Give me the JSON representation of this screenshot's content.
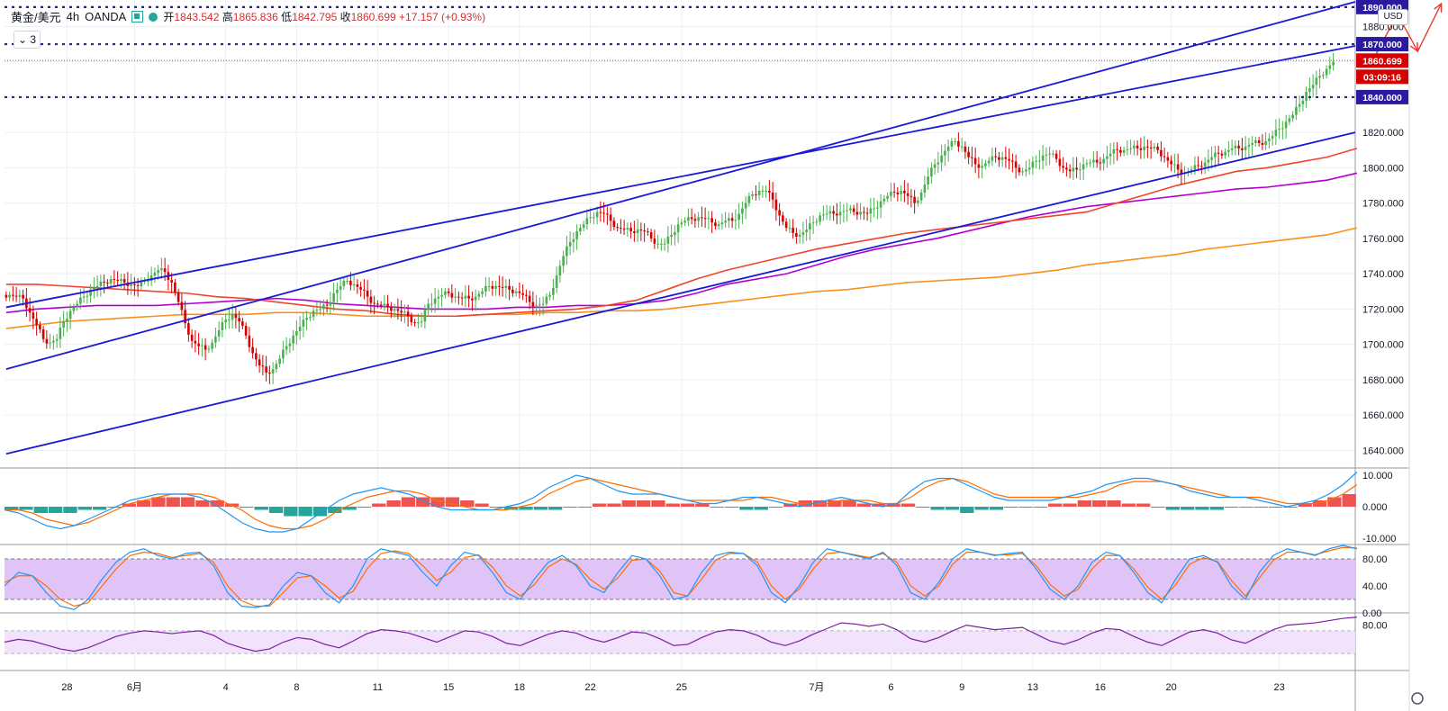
{
  "legend": {
    "symbol": "黄金/美元",
    "interval": "4h",
    "exchange": "OANDA",
    "open_label": "开",
    "open": "1843.542",
    "high_label": "高",
    "high": "1865.836",
    "low_label": "低",
    "low": "1842.795",
    "close_label": "收",
    "close": "1860.699",
    "change": "+17.157 (+0.93%)",
    "interval_selector": "3",
    "currency": "USD"
  },
  "colors": {
    "up": "#26a69a",
    "candle_up": "#4caf50",
    "candle_down": "#d50000",
    "channel": "#1a1ad6",
    "level": "#2a1aa0",
    "price_line": "#e53935",
    "ma_fast": "#f0442b",
    "ma_mid": "#b200d0",
    "ma_slow": "#f7901e",
    "macd_pos": "#ef5350",
    "macd_neg": "#26a69a",
    "macd_line": "#2196f3",
    "signal_line": "#ff6d00",
    "stoch_band": "#e1c4f7",
    "rsi_band": "#f3e2fb",
    "rsi_line": "#7b1fa2"
  },
  "chart_data": [
    {
      "type": "candlestick",
      "title": "黄金/美元 · 4h · OANDA",
      "ylim": [
        1630,
        1895
      ],
      "yticks": [
        1640,
        1660,
        1680,
        1700,
        1720,
        1740,
        1760,
        1780,
        1800,
        1820,
        1840,
        1860,
        1880
      ],
      "ytick_labels": [
        "1640.000",
        "1660.000",
        "1680.000",
        "1700.000",
        "1720.000",
        "1740.000",
        "1760.000",
        "1780.000",
        "1800.000",
        "1820.000",
        "1840.000",
        "1860.000",
        "1880.000"
      ],
      "x_ticks": [
        "28",
        "6月",
        "4",
        "8",
        "11",
        "15",
        "18",
        "22",
        "25",
        "7月",
        "6",
        "9",
        "13",
        "16",
        "20",
        "23"
      ],
      "x_tick_index": [
        18,
        38,
        65,
        86,
        110,
        131,
        152,
        173,
        200,
        240,
        262,
        283,
        304,
        324,
        345,
        377
      ],
      "n_bars": 400,
      "close_series": [
        1728,
        1727,
        1726,
        1718,
        1711,
        1703,
        1701,
        1703,
        1713,
        1719,
        1723,
        1727,
        1731,
        1733,
        1735,
        1737,
        1736,
        1735,
        1734,
        1733,
        1736,
        1739,
        1742,
        1741,
        1735,
        1724,
        1712,
        1702,
        1699,
        1697,
        1701,
        1708,
        1714,
        1717,
        1713,
        1705,
        1695,
        1688,
        1684,
        1686,
        1692,
        1699,
        1705,
        1710,
        1715,
        1719,
        1720,
        1722,
        1729,
        1733,
        1736,
        1734,
        1731,
        1727,
        1723,
        1722,
        1721,
        1720,
        1718,
        1716,
        1712,
        1713,
        1723,
        1726,
        1728,
        1729,
        1727,
        1726,
        1726,
        1727,
        1730,
        1733,
        1733,
        1732,
        1731,
        1730,
        1728,
        1724,
        1722,
        1723,
        1728,
        1739,
        1750,
        1758,
        1764,
        1768,
        1772,
        1775,
        1774,
        1770,
        1766,
        1765,
        1764,
        1765,
        1764,
        1760,
        1757,
        1757,
        1762,
        1768,
        1770,
        1771,
        1772,
        1771,
        1769,
        1768,
        1770,
        1770,
        1774,
        1780,
        1785,
        1787,
        1787,
        1782,
        1773,
        1766,
        1763,
        1762,
        1765,
        1769,
        1773,
        1774,
        1774,
        1775,
        1776,
        1775,
        1775,
        1774,
        1777,
        1781,
        1784,
        1786,
        1787,
        1784,
        1780,
        1786,
        1795,
        1802,
        1807,
        1812,
        1815,
        1812,
        1806,
        1802,
        1801,
        1804,
        1806,
        1806,
        1804,
        1800,
        1798,
        1800,
        1804,
        1807,
        1808,
        1805,
        1800,
        1798,
        1799,
        1802,
        1803,
        1803,
        1805,
        1808,
        1810,
        1810,
        1811,
        1811,
        1812,
        1811,
        1810,
        1806,
        1802,
        1799,
        1797,
        1799,
        1801,
        1803,
        1806,
        1808,
        1809,
        1811,
        1811,
        1812,
        1814,
        1814,
        1815,
        1818,
        1822,
        1826,
        1830,
        1836,
        1843,
        1847,
        1852,
        1856,
        1860
      ],
      "close_series_note": "subsampled every 2 bars; each entry covers 2 candles",
      "ma_fast": [
        1734,
        1734,
        1733,
        1732,
        1731,
        1730,
        1729,
        1727,
        1726,
        1724,
        1722,
        1720,
        1719,
        1717,
        1716,
        1716,
        1717,
        1718,
        1719,
        1720,
        1722,
        1725,
        1731,
        1737,
        1742,
        1746,
        1750,
        1754,
        1757,
        1760,
        1763,
        1765,
        1767,
        1769,
        1771,
        1773,
        1775,
        1780,
        1785,
        1790,
        1794,
        1798,
        1800,
        1803,
        1806,
        1811
      ],
      "ma_mid": [
        1718,
        1720,
        1721,
        1722,
        1722,
        1722,
        1723,
        1724,
        1725,
        1726,
        1725,
        1723,
        1722,
        1721,
        1720,
        1720,
        1720,
        1721,
        1721,
        1722,
        1722,
        1723,
        1725,
        1729,
        1734,
        1737,
        1740,
        1745,
        1750,
        1754,
        1757,
        1760,
        1764,
        1768,
        1772,
        1775,
        1778,
        1780,
        1782,
        1784,
        1786,
        1788,
        1789,
        1791,
        1793,
        1797
      ],
      "ma_slow": [
        1709,
        1711,
        1713,
        1714,
        1715,
        1716,
        1717,
        1717,
        1717,
        1718,
        1718,
        1717,
        1716,
        1716,
        1716,
        1716,
        1717,
        1717,
        1718,
        1718,
        1719,
        1719,
        1720,
        1722,
        1724,
        1726,
        1728,
        1730,
        1731,
        1733,
        1735,
        1736,
        1737,
        1738,
        1740,
        1742,
        1745,
        1747,
        1749,
        1751,
        1754,
        1756,
        1758,
        1760,
        1762,
        1766
      ],
      "channel_lines": [
        {
          "name": "upper",
          "start": [
            0,
            1686
          ],
          "end": [
            400,
            1894
          ]
        },
        {
          "name": "middle",
          "start": [
            0,
            1721
          ],
          "end": [
            400,
            1869
          ]
        },
        {
          "name": "lower",
          "start": [
            0,
            1638
          ],
          "end": [
            400,
            1820
          ]
        }
      ],
      "levels": [
        {
          "value": 1891,
          "label": "1890.000"
        },
        {
          "value": 1870,
          "label": "1870.000"
        },
        {
          "value": 1840,
          "label": "1840.000"
        }
      ],
      "last_price": {
        "value": 1860.699,
        "label": "1860.699",
        "countdown": "03:09:16"
      },
      "projection": [
        [
          405,
          1862
        ],
        [
          412,
          1887
        ],
        [
          418,
          1866
        ],
        [
          425,
          1893
        ]
      ]
    },
    {
      "type": "bar",
      "name": "MACD",
      "ylim": [
        -12,
        12
      ],
      "yticks": [
        10,
        0,
        -10
      ],
      "ytick_labels": [
        "10.000",
        "0.000",
        "-10.000"
      ],
      "histogram": [
        -1,
        -1,
        -2,
        -2,
        -2,
        -1,
        -1,
        0,
        1,
        2,
        3,
        3,
        3,
        2,
        2,
        1,
        0,
        -1,
        -2,
        -3,
        -3,
        -3,
        -2,
        -1,
        0,
        1,
        2,
        3,
        3,
        3,
        3,
        2,
        1,
        0,
        -1,
        -1,
        -1,
        -1,
        0,
        0,
        1,
        1,
        2,
        2,
        2,
        1,
        1,
        1,
        0,
        0,
        -1,
        -1,
        0,
        1,
        2,
        2,
        2,
        2,
        1,
        1,
        1,
        1,
        0,
        -1,
        -1,
        -2,
        -1,
        -1,
        0,
        0,
        0,
        1,
        1,
        2,
        2,
        2,
        1,
        1,
        0,
        -1,
        -1,
        -1,
        -1,
        0,
        0,
        0,
        0,
        0,
        1,
        2,
        3,
        4
      ],
      "macd": [
        -1,
        -2,
        -4,
        -6,
        -7,
        -6,
        -4,
        -2,
        0,
        2,
        3,
        4,
        4,
        4,
        3,
        1,
        -2,
        -5,
        -7,
        -8,
        -8,
        -7,
        -4,
        -1,
        2,
        4,
        5,
        6,
        5,
        4,
        2,
        0,
        -1,
        -1,
        -1,
        -1,
        0,
        1,
        3,
        6,
        8,
        10,
        9,
        7,
        5,
        4,
        4,
        4,
        3,
        2,
        1,
        1,
        2,
        3,
        3,
        2,
        1,
        0,
        1,
        2,
        3,
        2,
        1,
        0,
        1,
        5,
        8,
        9,
        9,
        7,
        5,
        3,
        2,
        2,
        2,
        2,
        3,
        4,
        5,
        7,
        8,
        9,
        9,
        8,
        7,
        5,
        4,
        3,
        3,
        3,
        2,
        1,
        0,
        1,
        2,
        4,
        7,
        11
      ],
      "signal": [
        -1,
        -1,
        -2,
        -4,
        -5,
        -6,
        -5,
        -3,
        -1,
        1,
        2,
        3,
        4,
        4,
        4,
        3,
        1,
        -1,
        -4,
        -6,
        -7,
        -7,
        -6,
        -4,
        -1,
        1,
        3,
        4,
        5,
        5,
        4,
        2,
        1,
        0,
        -1,
        -1,
        -1,
        0,
        1,
        4,
        6,
        8,
        9,
        8,
        7,
        6,
        5,
        4,
        3,
        2,
        2,
        2,
        2,
        2,
        3,
        3,
        2,
        1,
        1,
        1,
        2,
        2,
        2,
        1,
        1,
        3,
        6,
        8,
        9,
        8,
        6,
        4,
        3,
        3,
        3,
        3,
        3,
        3,
        4,
        5,
        7,
        8,
        8,
        8,
        7,
        6,
        5,
        4,
        3,
        3,
        3,
        2,
        1,
        1,
        1,
        2,
        4,
        7
      ]
    },
    {
      "type": "line",
      "name": "Stochastic",
      "ylim": [
        0,
        100
      ],
      "yticks": [
        80,
        40,
        0
      ],
      "ytick_labels": [
        "80.00",
        "40.00",
        "0.00"
      ],
      "band": [
        20,
        80
      ],
      "k": [
        40,
        60,
        55,
        30,
        10,
        5,
        20,
        50,
        75,
        90,
        95,
        85,
        80,
        88,
        90,
        70,
        30,
        10,
        8,
        12,
        40,
        60,
        55,
        30,
        15,
        40,
        80,
        95,
        90,
        85,
        60,
        40,
        70,
        90,
        85,
        60,
        30,
        20,
        50,
        75,
        85,
        70,
        40,
        30,
        60,
        85,
        80,
        55,
        20,
        25,
        60,
        85,
        90,
        88,
        70,
        30,
        15,
        40,
        75,
        95,
        90,
        85,
        80,
        90,
        70,
        30,
        20,
        45,
        80,
        95,
        90,
        85,
        88,
        90,
        65,
        35,
        20,
        40,
        75,
        90,
        85,
        60,
        30,
        15,
        50,
        80,
        85,
        75,
        40,
        20,
        60,
        85,
        95,
        90,
        85,
        95,
        100,
        95
      ],
      "d": [
        45,
        55,
        55,
        40,
        20,
        10,
        15,
        40,
        65,
        85,
        90,
        88,
        82,
        85,
        88,
        75,
        40,
        18,
        10,
        10,
        30,
        52,
        55,
        40,
        22,
        32,
        65,
        88,
        92,
        88,
        70,
        48,
        60,
        82,
        86,
        68,
        40,
        25,
        42,
        68,
        80,
        72,
        50,
        35,
        52,
        78,
        80,
        62,
        30,
        25,
        50,
        78,
        88,
        88,
        75,
        40,
        20,
        35,
        65,
        88,
        90,
        86,
        82,
        88,
        75,
        40,
        25,
        40,
        72,
        90,
        90,
        86,
        86,
        88,
        70,
        42,
        25,
        35,
        65,
        85,
        85,
        65,
        38,
        20,
        42,
        72,
        82,
        76,
        48,
        25,
        52,
        78,
        90,
        90,
        86,
        92,
        97,
        96
      ]
    },
    {
      "type": "line",
      "name": "RSI",
      "ylim": [
        0,
        100
      ],
      "yticks": [
        80
      ],
      "ytick_labels": [
        "80.00"
      ],
      "band": [
        30,
        70
      ],
      "values": [
        50,
        55,
        52,
        45,
        38,
        34,
        40,
        50,
        60,
        66,
        70,
        68,
        65,
        68,
        70,
        62,
        48,
        40,
        34,
        38,
        50,
        58,
        55,
        46,
        40,
        52,
        65,
        72,
        70,
        66,
        58,
        50,
        60,
        70,
        68,
        60,
        48,
        44,
        54,
        64,
        70,
        66,
        56,
        50,
        58,
        68,
        66,
        56,
        44,
        46,
        58,
        68,
        72,
        70,
        62,
        50,
        44,
        52,
        64,
        74,
        84,
        82,
        78,
        82,
        72,
        56,
        50,
        58,
        70,
        80,
        76,
        72,
        74,
        76,
        64,
        52,
        46,
        54,
        66,
        74,
        72,
        60,
        50,
        44,
        56,
        68,
        72,
        66,
        54,
        48,
        60,
        72,
        80,
        82,
        84,
        88,
        92,
        94
      ]
    }
  ]
}
